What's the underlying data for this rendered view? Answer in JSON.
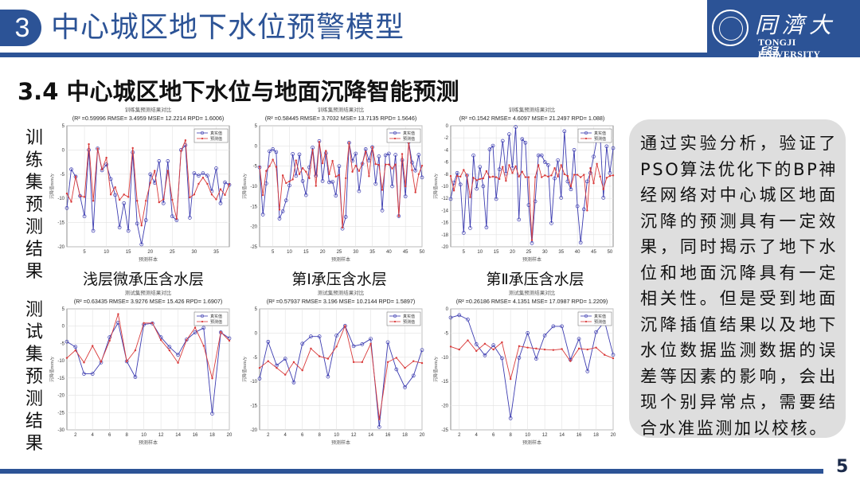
{
  "header": {
    "section_number": "3",
    "title": "中心城区地下水位预警模型",
    "logo_cn": "同濟大學",
    "logo_en": "TONGJI UNIVERSITY"
  },
  "subtitle": "3.4 中心城区地下水位与地面沉降智能预测",
  "side_labels": {
    "train": "训练集预测结果",
    "test": "测试集预测结果"
  },
  "layer_labels": [
    "浅层微承压含水层",
    "第Ⅰ承压含水层",
    "第Ⅱ承压含水层"
  ],
  "description": "通过实验分析，验证了PSO算法优化下的BP神经网络对中心城区地面沉降的预测具有一定效果，同时揭示了地下水位和地面沉降具有一定相关性。但是受到地面沉降插值结果以及地下水位数据监测数据的误差等因素的影响，会出现个别异常点，需要结合水准监测加以校核。",
  "page_number": "5",
  "colors": {
    "brand": "#2c5396",
    "actual": "#3b3bb0",
    "predicted": "#d93a3a",
    "textbox_bg": "#dedede"
  },
  "chart_data": [
    {
      "id": "train-shallow",
      "type": "line",
      "title": "训练集预测结果对比",
      "subtitle": "(R² =0.59996 RMSE= 3.4959 MSE= 12.2214 RPD= 1.6006)",
      "xlabel": "预测样本",
      "ylabel": "沉降值mm/y",
      "xlim": [
        1,
        38
      ],
      "ylim": [
        -20,
        5
      ],
      "xticks": [
        5,
        10,
        15,
        20,
        25,
        30,
        35
      ],
      "yticks": [
        5,
        0,
        -5,
        -10,
        -15,
        -20
      ],
      "legend": [
        "真实值",
        "预测值"
      ],
      "series": [
        {
          "name": "真实值",
          "values": [
            -12,
            -4,
            -5.5,
            -9.5,
            -13.7,
            0,
            -16.7,
            0.3,
            -4.2,
            -3,
            -6,
            -9.3,
            -16,
            -11,
            -16.7,
            -0.5,
            -15.2,
            -19.5,
            -14.5,
            -5,
            -6.8,
            -2.3,
            -11,
            -2.3,
            -13.7,
            -14.5,
            0,
            1,
            -14,
            -4.8,
            -5.3,
            -4.8,
            -5.3,
            -8.5,
            -3.8,
            -11,
            -6.7,
            -7.2
          ]
        },
        {
          "name": "预测值",
          "values": [
            -9,
            -10.7,
            -5.5,
            -9.5,
            -9.7,
            1.2,
            -10.5,
            0.3,
            -4,
            -1.6,
            -9.2,
            -7.7,
            -10.3,
            -9.2,
            -9.7,
            0.4,
            -10.5,
            -15.6,
            -10.5,
            -6.8,
            -4.3,
            -10.8,
            -10.2,
            -4.3,
            -10.3,
            -14.2,
            -0.2,
            2,
            -9.8,
            -9.2,
            -7,
            -5.7,
            -7,
            -9.2,
            -10.2,
            -8.1,
            -9.3,
            -7.1
          ]
        }
      ]
    },
    {
      "id": "train-aquifer1",
      "type": "line",
      "title": "训练集预测结果对比",
      "subtitle": "(R² =0.58445 RMSE= 3.7032 MSE= 13.7135 RPD= 1.5646)",
      "xlabel": "预测样本",
      "ylabel": "沉降值mm/y",
      "xlim": [
        1,
        50
      ],
      "ylim": [
        -25,
        5
      ],
      "xticks": [
        5,
        10,
        15,
        20,
        25,
        30,
        35,
        40,
        45,
        50
      ],
      "yticks": [
        5,
        0,
        -5,
        -10,
        -15,
        -20,
        -25
      ],
      "legend": [
        "真实值",
        "预测值"
      ],
      "series": [
        {
          "name": "真实值",
          "values": [
            -5.3,
            -17,
            -9.3,
            -1.3,
            -0.8,
            -1.5,
            -18,
            -16.2,
            -13.5,
            -9.8,
            -2,
            -7.4,
            -2.1,
            -8.7,
            -12.2,
            -5.3,
            -0.4,
            -7.4,
            1.2,
            -8.7,
            -1.8,
            -9,
            -8.9,
            -12.3,
            -5,
            -20.5,
            -17.6,
            0.8,
            -3.7,
            -1.9,
            -11.2,
            -4.4,
            -0.8,
            -3.6,
            -0.3,
            -9.4,
            -2.6,
            -16,
            -2.3,
            -1.9,
            -10,
            -2.2,
            -17.4,
            -3.5,
            -12.5,
            1,
            -4.1,
            -6.1,
            -2.2,
            -7.8
          ]
        },
        {
          "name": "预测值",
          "values": [
            -5.2,
            -12.2,
            -6.2,
            -5,
            -3.4,
            -5.2,
            -15.8,
            -7.3,
            -9.2,
            -8.8,
            -8.3,
            -3.6,
            -7,
            -5.5,
            -6.4,
            -8,
            -1,
            -9.9,
            1,
            -4.3,
            -1.2,
            -7,
            -3.7,
            -7.6,
            -7.2,
            -20.2,
            -8,
            0.8,
            -6.4,
            -4.9,
            -6.2,
            -4.4,
            -1.4,
            -7.5,
            -0.3,
            -4.5,
            -4.7,
            -10.9,
            -4.6,
            -4.6,
            -5.6,
            -4.6,
            -17.4,
            -2,
            -10,
            0.7,
            -6,
            -11.5,
            -7,
            -4.9
          ]
        }
      ]
    },
    {
      "id": "train-aquifer2",
      "type": "line",
      "title": "训练集预测结果对比",
      "subtitle": "(R² =0.1542 RMSE= 4.6097 MSE= 21.2497 RPD= 1.088)",
      "xlabel": "预测样本",
      "ylabel": "沉降值mm/y",
      "xlim": [
        1,
        51
      ],
      "ylim": [
        -20,
        0
      ],
      "xticks": [
        5,
        10,
        15,
        20,
        25,
        30,
        35,
        40,
        45,
        50
      ],
      "yticks": [
        0,
        -2,
        -4,
        -6,
        -8,
        -10,
        -12,
        -14,
        -16,
        -18,
        -20
      ],
      "legend": [
        "真实值",
        "预测值"
      ],
      "series": [
        {
          "name": "真实值",
          "values": [
            -12.1,
            -9.4,
            -7.8,
            -9.7,
            -17.7,
            -8.2,
            -16.9,
            -4.9,
            -10.4,
            -6.8,
            -10,
            -16.8,
            -3.9,
            -3.3,
            -12.1,
            -7.2,
            -2.5,
            -7.9,
            -1.4,
            -7,
            -0.2,
            -15.5,
            -2.2,
            -2.8,
            -13.1,
            -19.4,
            -12.5,
            -4.9,
            -4.9,
            -6,
            -6.5,
            -16.1,
            -8.7,
            -5.7,
            -11.9,
            -0.9,
            -9.2,
            -10.5,
            -4,
            -13.3,
            -19.3,
            -13.8,
            -9.2,
            -7.8,
            -5.1,
            -2.2,
            -1.6,
            -11.9,
            -3.4,
            -7.8,
            -3.7
          ]
        },
        {
          "name": "预测值",
          "values": [
            -8.3,
            -10.7,
            -8.3,
            -8.4,
            -7.3,
            -8.2,
            -11.8,
            -8.6,
            -9,
            -8.8,
            -8.7,
            -7.5,
            -8.5,
            -8.4,
            -8.5,
            -8.8,
            -6.8,
            -9.1,
            -6.5,
            -7.8,
            -6.7,
            -8.4,
            -7.6,
            -8.5,
            -8.5,
            -18.9,
            -8.5,
            -6.5,
            -8.5,
            -8.2,
            -8.4,
            -8.2,
            -7,
            -8.4,
            -6.5,
            -8,
            -8.3,
            -10,
            -8.1,
            -8.1,
            -8.5,
            -8.1,
            -14,
            -7,
            -9.5,
            -6.3,
            -8.4,
            -10.5,
            -8.6,
            -8.3,
            -8.2
          ]
        }
      ]
    },
    {
      "id": "test-shallow",
      "type": "line",
      "title": "测试集预测结果对比",
      "subtitle": "(R² =0.63435 RMSE= 3.9276 MSE= 15.426 RPD= 1.6907)",
      "xlabel": "预测样本",
      "ylabel": "沉降值mm/y",
      "xlim": [
        1,
        20
      ],
      "ylim": [
        -30,
        5
      ],
      "xticks": [
        2,
        4,
        6,
        8,
        10,
        12,
        14,
        16,
        18,
        20
      ],
      "yticks": [
        5,
        0,
        -5,
        -10,
        -15,
        -20,
        -25,
        -30
      ],
      "legend": [
        "真实值",
        "预测值"
      ],
      "series": [
        {
          "name": "真实值",
          "values": [
            -4.5,
            -6,
            -13.8,
            -13.8,
            -10.5,
            -3.2,
            1,
            -10.2,
            -14.7,
            0.5,
            0.8,
            -3.2,
            -6,
            -8.3,
            -3.9,
            -1.8,
            -0.5,
            -25.3,
            -1.8,
            -3.5
          ]
        },
        {
          "name": "预测值",
          "values": [
            -9.2,
            -7,
            -10.5,
            -5.7,
            -10.3,
            -4.2,
            3.5,
            -10.2,
            -7,
            0.9,
            0.9,
            -4,
            -7,
            -10.6,
            -4,
            -0.4,
            -5.7,
            -15.1,
            -1.7,
            -4.2
          ]
        }
      ]
    },
    {
      "id": "test-aquifer1",
      "type": "line",
      "title": "测试集预测结果对比",
      "subtitle": "(R² =0.57937 RMSE= 3.196 MSE= 10.2144 RPD= 1.5897)",
      "xlabel": "预测样本",
      "ylabel": "沉降值mm/y",
      "xlim": [
        1,
        20
      ],
      "ylim": [
        -20,
        5
      ],
      "xticks": [
        2,
        4,
        6,
        8,
        10,
        12,
        14,
        16,
        18,
        20
      ],
      "yticks": [
        5,
        0,
        -5,
        -10,
        -15,
        -20
      ],
      "legend": [
        "真实值",
        "预测值"
      ],
      "series": [
        {
          "name": "真实值",
          "values": [
            -9.4,
            -1.8,
            -6.7,
            -5.3,
            -10.2,
            -2.2,
            -0.7,
            -0.7,
            -9,
            -0.5,
            1.5,
            -2.7,
            -2.3,
            -1.2,
            -19.4,
            -1.9,
            -7.5,
            -11.2,
            -8.8,
            -3.5
          ]
        },
        {
          "name": "预测值",
          "values": [
            -7.2,
            -5.8,
            -7.2,
            -8.6,
            -6,
            -7.7,
            -3.2,
            -4.8,
            -5.3,
            -2.8,
            1.5,
            -6,
            -6,
            -2.2,
            -17.8,
            -6,
            -5.1,
            -7.2,
            -5.8,
            -6.2
          ]
        }
      ]
    },
    {
      "id": "test-aquifer2",
      "type": "line",
      "title": "测试集预测结果对比",
      "subtitle": "(R² =0.26186 RMSE= 4.1351 MSE= 17.0987 RPD= 1.2209)",
      "xlabel": "预测样本",
      "ylabel": "沉降值mm/y",
      "xlim": [
        1,
        20
      ],
      "ylim": [
        -25,
        0
      ],
      "xticks": [
        2,
        4,
        6,
        8,
        10,
        12,
        14,
        16,
        18,
        20
      ],
      "yticks": [
        0,
        -5,
        -10,
        -15,
        -20,
        -25
      ],
      "legend": [
        "真实值",
        "预测值"
      ],
      "series": [
        {
          "name": "真实值",
          "values": [
            -1.8,
            -1.3,
            -2.2,
            -7.3,
            -9.6,
            -7.5,
            -10.2,
            -22.6,
            -10.1,
            -5,
            -10.3,
            -5.5,
            -3.6,
            -3.6,
            -10.5,
            -6.2,
            -12.9,
            -4.8,
            -2.6,
            -9.5
          ]
        },
        {
          "name": "预测值",
          "values": [
            -7.8,
            -8.4,
            -6.5,
            -8.7,
            -7.2,
            -8.4,
            -6.9,
            -14.5,
            -7.7,
            -8,
            -8.2,
            -8.4,
            -8.5,
            -8.3,
            -10.8,
            -8.2,
            -8.4,
            -8,
            -9.5,
            -10.2
          ]
        }
      ]
    }
  ]
}
